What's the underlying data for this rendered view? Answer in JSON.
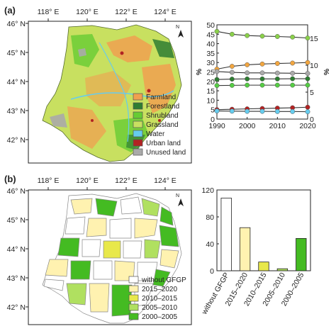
{
  "panel_a": {
    "label": "(a)",
    "longitudes": [
      "118° E",
      "120° E",
      "122° E",
      "124° E"
    ],
    "latitudes": [
      "46° N",
      "45° N",
      "44° N",
      "43° N",
      "42° N"
    ],
    "north_arrow": "N",
    "legend": [
      {
        "label": "Farmland",
        "color": "#f0a050"
      },
      {
        "label": "Forestland",
        "color": "#2e7d32"
      },
      {
        "label": "Shrubland",
        "color": "#66cc33"
      },
      {
        "label": "Grassland",
        "color": "#c8e060"
      },
      {
        "label": "Water",
        "color": "#66ccee"
      },
      {
        "label": "Urban land",
        "color": "#b22222"
      },
      {
        "label": "Unused land",
        "color": "#aaaaaa"
      }
    ]
  },
  "panel_b": {
    "label": "(b)",
    "longitudes": [
      "118° E",
      "120° E",
      "122° E",
      "124° E"
    ],
    "latitudes": [
      "46° N",
      "45° N",
      "44° N",
      "43° N",
      "42° N"
    ],
    "north_arrow": "N",
    "legend": [
      {
        "label": "without GFGP",
        "color": "#ffffff"
      },
      {
        "label": "2015–2020",
        "color": "#fff2b0"
      },
      {
        "label": "2010–2015",
        "color": "#e8e84a"
      },
      {
        "label": "2005–2010",
        "color": "#b0e060"
      },
      {
        "label": "2000–2005",
        "color": "#44bb22"
      }
    ]
  },
  "chart_data": [
    {
      "type": "line",
      "x": [
        1990,
        1995,
        2000,
        2005,
        2010,
        2015,
        2020
      ],
      "xticks": [
        "1990",
        "2000",
        "2010",
        "2020"
      ],
      "xlim": [
        1990,
        2020
      ],
      "ylabel_left": "%",
      "ylabel_right": "%",
      "ylim_left": [
        0,
        50
      ],
      "yticks_left": [
        "0",
        "5",
        "10",
        "15",
        "20",
        "25",
        "30",
        "35",
        "40",
        "45",
        "50"
      ],
      "ylim_right": [
        0,
        17.5
      ],
      "yticks_right": [
        "0",
        "5",
        "10",
        "15"
      ],
      "grid": false,
      "series": [
        {
          "color": "#8ad04a",
          "axis": "left",
          "values": [
            46.5,
            45.0,
            44.3,
            44.0,
            43.8,
            43.5,
            43.0
          ]
        },
        {
          "color": "#f2a640",
          "axis": "left",
          "values": [
            26.5,
            28.0,
            28.8,
            29.2,
            29.5,
            29.7,
            30.0
          ]
        },
        {
          "color": "#aaaaaa",
          "axis": "left",
          "values": [
            25.2,
            24.8,
            24.5,
            24.5,
            24.4,
            24.3,
            24.2
          ]
        },
        {
          "color": "#2e7d32",
          "axis": "left",
          "values": [
            21.0,
            21.2,
            21.3,
            21.3,
            21.3,
            21.4,
            21.4
          ]
        },
        {
          "color": "#55cc44",
          "axis": "left",
          "values": [
            17.8,
            17.9,
            18.0,
            18.0,
            18.0,
            18.0,
            18.0
          ]
        },
        {
          "color": "#b22222",
          "axis": "left",
          "values": [
            5.0,
            5.2,
            5.4,
            5.6,
            5.8,
            6.0,
            6.3
          ]
        },
        {
          "color": "#66ccee",
          "axis": "left",
          "values": [
            4.3,
            4.2,
            4.1,
            4.1,
            4.0,
            4.0,
            3.9
          ]
        }
      ]
    },
    {
      "type": "bar",
      "categories": [
        "without GFGP",
        "2015–2020",
        "2010–2015",
        "2005–2010",
        "2000–2005"
      ],
      "values": [
        108,
        64,
        13,
        3,
        48
      ],
      "colors": [
        "#ffffff",
        "#fff2b0",
        "#e8e84a",
        "#b0e060",
        "#44bb22"
      ],
      "ylim": [
        0,
        120
      ],
      "yticks": [
        "0",
        "40",
        "80",
        "120"
      ],
      "grid": false
    }
  ]
}
